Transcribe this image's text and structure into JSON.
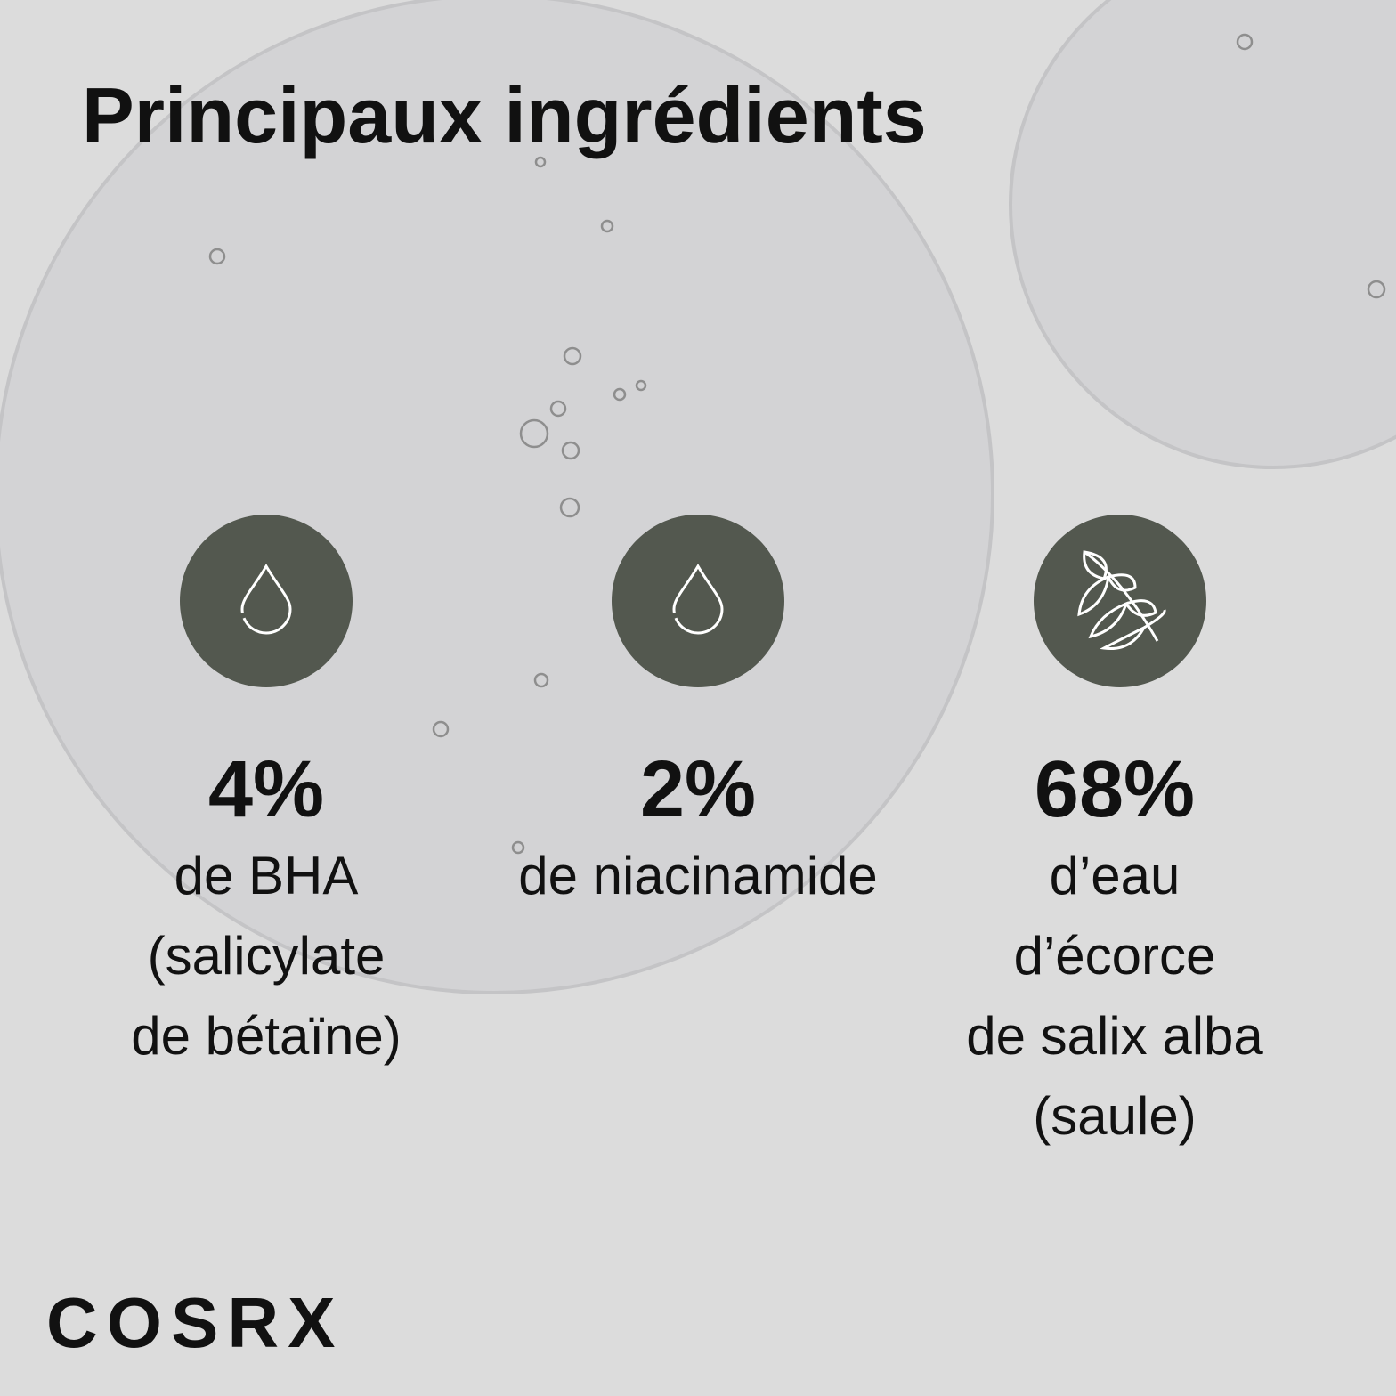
{
  "title": "Principaux ingrédients",
  "items": [
    {
      "percent": "4%",
      "lines": [
        "de BHA",
        "(salicylate",
        "de bétaïne)"
      ]
    },
    {
      "percent": "2%",
      "lines": [
        "de niacinamide"
      ]
    },
    {
      "percent": "68%",
      "lines": [
        "d’eau",
        "d’écorce",
        "de salix alba",
        "(saule)"
      ]
    }
  ],
  "brand": "COSRX"
}
